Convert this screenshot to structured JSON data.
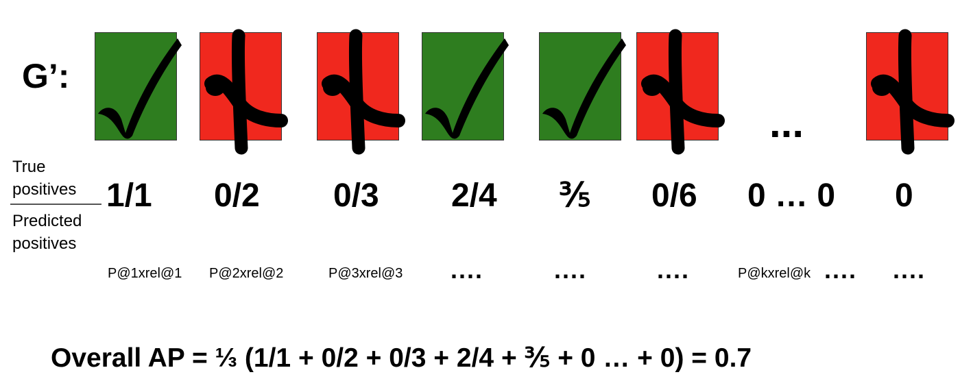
{
  "title": "G’:",
  "colors": {
    "relevant": "#2e7d1f",
    "irrelevant": "#f0281e",
    "mark": "#000000"
  },
  "boxes": [
    {
      "status": "relevant",
      "icon": "checkmark-icon"
    },
    {
      "status": "irrelevant",
      "icon": "crossed-check-icon"
    },
    {
      "status": "irrelevant",
      "icon": "crossed-check-icon"
    },
    {
      "status": "relevant",
      "icon": "checkmark-icon"
    },
    {
      "status": "relevant",
      "icon": "checkmark-icon"
    },
    {
      "status": "irrelevant",
      "icon": "crossed-check-icon"
    },
    {
      "status": "irrelevant",
      "icon": "crossed-check-icon"
    }
  ],
  "ellipsis": "...",
  "fraction_label": {
    "numerator_line1": "True",
    "numerator_line2": "positives",
    "denominator_line1": "Predicted",
    "denominator_line2": "positives"
  },
  "fractions": [
    "1/1",
    "0/2",
    "0/3",
    "2/4",
    "⅗",
    "0/6",
    "0 … 0",
    "0"
  ],
  "precision_terms": [
    "P@1xrel@1",
    "P@2xrel@2",
    "P@3xrel@3",
    "....",
    "....",
    "....",
    "P@kxrel@k",
    "....",
    "...."
  ],
  "formula": "Overall AP = ⅓ (1/1 + 0/2 + 0/3 + 2/4 + ⅗ + 0 … + 0) =  0.7"
}
